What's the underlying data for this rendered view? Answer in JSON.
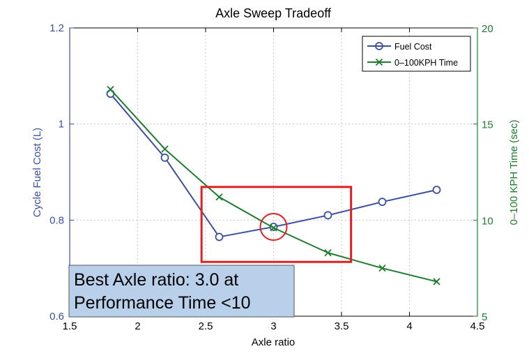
{
  "colors": {
    "fuel": "#3a4fa0",
    "time": "#1e7d2d",
    "highlight": "#e02020",
    "annotation_bg": "#b8d0ea",
    "grid": "#c8c8c8",
    "axis": "#000000"
  },
  "chart_data": {
    "type": "line",
    "title": "Axle Sweep Tradeoff",
    "xlabel": "Axle ratio",
    "xlim": [
      1.5,
      4.5
    ],
    "xticks": [
      1.5,
      2,
      2.5,
      3,
      3.5,
      4,
      4.5
    ],
    "xtick_labels": [
      "1.5",
      "2",
      "2.5",
      "3",
      "3.5",
      "4",
      "4.5"
    ],
    "ylabel_left": "Cycle Fuel Cost (L)",
    "ylim_left": [
      0.6,
      1.2
    ],
    "yticks_left": [
      0.6,
      0.8,
      1,
      1.2
    ],
    "ytick_labels_left": [
      "0.6",
      "0.8",
      "1",
      "1.2"
    ],
    "ylabel_right": "0–100 KPH Time (sec)",
    "ylim_right": [
      5,
      20
    ],
    "yticks_right": [
      5,
      10,
      15,
      20
    ],
    "ytick_labels_right": [
      "5",
      "10",
      "15",
      "20"
    ],
    "grid": true,
    "legend_position": "top-right",
    "series": [
      {
        "name": "Fuel Cost",
        "axis": "left",
        "marker": "circle",
        "x": [
          1.8,
          2.2,
          2.6,
          3.0,
          3.4,
          3.8,
          4.2
        ],
        "values": [
          1.063,
          0.93,
          0.765,
          0.786,
          0.81,
          0.838,
          0.863
        ]
      },
      {
        "name": "0–100KPH Time",
        "axis": "right",
        "marker": "x",
        "x": [
          1.8,
          2.2,
          2.6,
          3.0,
          3.4,
          3.8,
          4.2
        ],
        "values": [
          16.8,
          13.7,
          11.2,
          9.6,
          8.3,
          7.5,
          6.8
        ]
      }
    ],
    "annotations": {
      "highlight_box": {
        "x_range": [
          2.47,
          3.57
        ],
        "y_range": [
          0.713,
          0.869
        ]
      },
      "highlight_circle": {
        "x": 3.0,
        "y": 0.786
      },
      "text_lines": [
        "Best Axle ratio: 3.0 at",
        "Performance Time <10"
      ]
    }
  }
}
